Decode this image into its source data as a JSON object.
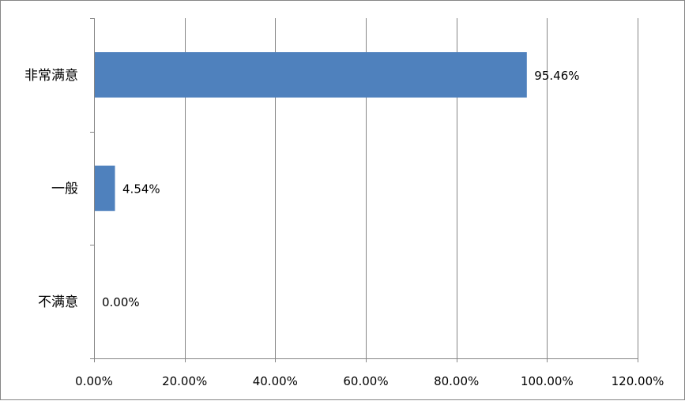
{
  "chart_data": {
    "type": "bar",
    "orientation": "horizontal",
    "categories": [
      "非常满意",
      "一般",
      "不满意"
    ],
    "values": [
      95.46,
      4.54,
      0.0
    ],
    "data_labels": [
      "95.46%",
      "4.54%",
      "0.00%"
    ],
    "x_ticks": [
      0,
      20,
      40,
      60,
      80,
      100,
      120
    ],
    "x_tick_labels": [
      "0.00%",
      "20.00%",
      "40.00%",
      "60.00%",
      "80.00%",
      "100.00%",
      "120.00%"
    ],
    "xlim": [
      0,
      120
    ],
    "grid": true,
    "legend": "none",
    "title": "",
    "xlabel": "",
    "ylabel": "",
    "bar_color": "#4F81BD",
    "grid_color": "#868686"
  }
}
